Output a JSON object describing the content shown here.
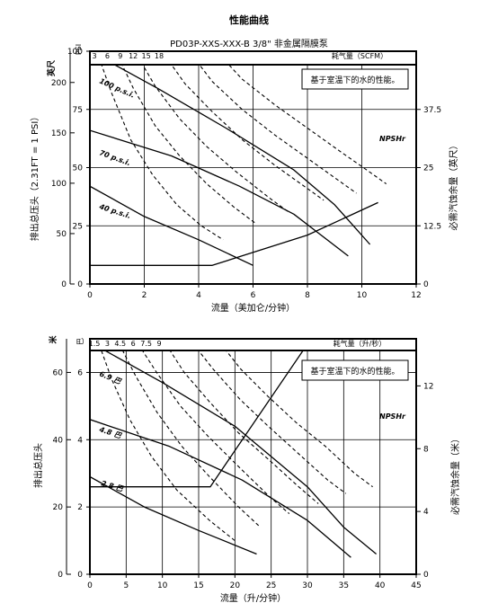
{
  "header": {
    "title": "性能曲线",
    "subtitle": "PD03P-XXS-XXX-B 3/8\" 非金属隔膜泵"
  },
  "chart_data": [
    {
      "type": "line",
      "name": "english",
      "note": "基于室温下的水的性能。",
      "xlabel": "流量（美加仑/分钟）",
      "ylabel_left": "排出总压头（2.31FT = 1 PSI）",
      "left_unit_outer": "英尺",
      "left_unit_inner": "PSI",
      "ylabel_right": "必需汽蚀余量（英尺）",
      "air_label": "耗气量（SCFM）",
      "xlim": [
        0,
        12
      ],
      "ylim_psi": [
        0,
        100
      ],
      "ylim_ft": [
        0,
        231
      ],
      "ylim_right": [
        0,
        50
      ],
      "x_ticks": [
        0,
        2,
        4,
        6,
        8,
        10,
        12
      ],
      "y_ticks_psi": [
        0,
        25,
        50,
        75,
        100
      ],
      "y_ticks_ft": [
        0,
        50,
        100,
        150,
        200
      ],
      "y_ticks_right": [
        0,
        12.5,
        25,
        37.5
      ],
      "air_ticks": [
        3,
        6,
        9,
        12,
        15,
        18
      ],
      "air_curves": [
        {
          "label": "3",
          "points": [
            [
              0.25,
              100
            ],
            [
              0.8,
              82
            ],
            [
              1.5,
              62
            ],
            [
              2.3,
              47
            ],
            [
              3.2,
              34
            ],
            [
              4.1,
              25
            ],
            [
              4.9,
              19
            ]
          ]
        },
        {
          "label": "6",
          "points": [
            [
              0.95,
              100
            ],
            [
              1.6,
              84
            ],
            [
              2.4,
              68
            ],
            [
              3.3,
              55
            ],
            [
              4.3,
              43
            ],
            [
              5.3,
              33
            ],
            [
              6.1,
              26
            ]
          ]
        },
        {
          "label": "9",
          "points": [
            [
              1.65,
              100
            ],
            [
              2.4,
              85
            ],
            [
              3.3,
              71
            ],
            [
              4.3,
              59
            ],
            [
              5.4,
              48
            ],
            [
              6.6,
              37
            ],
            [
              7.3,
              31
            ]
          ]
        },
        {
          "label": "12",
          "points": [
            [
              2.65,
              100
            ],
            [
              3.5,
              86
            ],
            [
              4.5,
              74
            ],
            [
              5.6,
              62
            ],
            [
              6.8,
              51
            ],
            [
              8.0,
              41
            ],
            [
              8.6,
              36
            ]
          ]
        },
        {
          "label": "15",
          "points": [
            [
              3.65,
              100
            ],
            [
              4.5,
              87
            ],
            [
              5.6,
              75
            ],
            [
              6.8,
              64
            ],
            [
              8.0,
              54
            ],
            [
              9.2,
              44
            ],
            [
              9.8,
              39
            ]
          ]
        },
        {
          "label": "18",
          "points": [
            [
              4.65,
              100
            ],
            [
              5.6,
              88
            ],
            [
              6.8,
              77
            ],
            [
              8.0,
              67
            ],
            [
              9.2,
              57
            ],
            [
              10.3,
              48
            ],
            [
              10.9,
              43
            ]
          ]
        }
      ],
      "series": [
        {
          "name": "100 p.s.i.",
          "points": [
            [
              0,
              100
            ],
            [
              2.5,
              84
            ],
            [
              5,
              67
            ],
            [
              7.5,
              49
            ],
            [
              9,
              34
            ],
            [
              10.3,
              17
            ]
          ]
        },
        {
          "name": "70 p.s.i.",
          "points": [
            [
              0,
              66
            ],
            [
              3,
              55
            ],
            [
              5.5,
              42
            ],
            [
              7.5,
              30
            ],
            [
              9.5,
              12
            ]
          ]
        },
        {
          "name": "40 p.s.i.",
          "points": [
            [
              0,
              42
            ],
            [
              2,
              29
            ],
            [
              4,
              19
            ],
            [
              6,
              8
            ]
          ]
        },
        {
          "name": "NPSHr",
          "points": [
            [
              0,
              8
            ],
            [
              4.5,
              8
            ],
            [
              8,
              21
            ],
            [
              10.6,
              35
            ]
          ]
        }
      ]
    },
    {
      "type": "line",
      "name": "metric",
      "note": "基于室温下的水的性能。",
      "xlabel": "流量（升/分钟）",
      "ylabel_left": "排出总压头",
      "left_unit_outer": "米",
      "left_unit_inner": "巴",
      "ylabel_right": "必需汽蚀余量（米）",
      "air_label": "耗气量（升/秒）",
      "xlim": [
        0,
        45
      ],
      "ylim_bar": [
        0,
        7
      ],
      "ylim_m": [
        0,
        70
      ],
      "ylim_right": [
        0,
        15
      ],
      "x_ticks": [
        0,
        5,
        10,
        15,
        20,
        25,
        30,
        35,
        40,
        45
      ],
      "y_ticks_bar": [
        0,
        2,
        4,
        6
      ],
      "y_ticks_m": [
        0,
        20,
        40,
        60
      ],
      "y_ticks_right": [
        0,
        4,
        8,
        12
      ],
      "air_ticks": [
        "1.5",
        "3",
        "4.5",
        "6",
        "7.5",
        "9"
      ],
      "air_curves": [
        {
          "label": "1.5",
          "points": [
            [
              1,
              7
            ],
            [
              3,
              5.8
            ],
            [
              5.5,
              4.6
            ],
            [
              8.5,
              3.5
            ],
            [
              12,
              2.5
            ],
            [
              16.5,
              1.6
            ],
            [
              20,
              1.0
            ]
          ]
        },
        {
          "label": "3",
          "points": [
            [
              3.7,
              7
            ],
            [
              6.3,
              5.9
            ],
            [
              9.3,
              4.8
            ],
            [
              12.7,
              3.8
            ],
            [
              16.5,
              2.9
            ],
            [
              20.5,
              2.0
            ],
            [
              23.5,
              1.4
            ]
          ]
        },
        {
          "label": "4.5",
          "points": [
            [
              6.2,
              7
            ],
            [
              9.2,
              6.0
            ],
            [
              12.5,
              5.0
            ],
            [
              16.3,
              4.1
            ],
            [
              20.5,
              3.2
            ],
            [
              24.8,
              2.3
            ],
            [
              27.5,
              1.8
            ]
          ]
        },
        {
          "label": "6",
          "points": [
            [
              10,
              7
            ],
            [
              13,
              6.0
            ],
            [
              16.6,
              5.1
            ],
            [
              20.5,
              4.2
            ],
            [
              24.7,
              3.4
            ],
            [
              28.8,
              2.6
            ],
            [
              31.5,
              2.1
            ]
          ]
        },
        {
          "label": "7.5",
          "points": [
            [
              13.7,
              7
            ],
            [
              17,
              6.1
            ],
            [
              20.7,
              5.2
            ],
            [
              24.6,
              4.4
            ],
            [
              28.7,
              3.6
            ],
            [
              32.8,
              2.8
            ],
            [
              35.3,
              2.4
            ]
          ]
        },
        {
          "label": "9",
          "points": [
            [
              17.5,
              7
            ],
            [
              20.8,
              6.1
            ],
            [
              24.5,
              5.3
            ],
            [
              28.5,
              4.5
            ],
            [
              32.5,
              3.8
            ],
            [
              36.5,
              3.0
            ],
            [
              39,
              2.6
            ]
          ]
        }
      ],
      "series": [
        {
          "name": "6.9 巴",
          "points": [
            [
              0,
              6.9
            ],
            [
              10,
              5.7
            ],
            [
              20,
              4.4
            ],
            [
              30,
              2.6
            ],
            [
              35,
              1.4
            ],
            [
              39.5,
              0.6
            ]
          ]
        },
        {
          "name": "4.8 巴",
          "points": [
            [
              0,
              4.6
            ],
            [
              11,
              3.8
            ],
            [
              21,
              2.8
            ],
            [
              30,
              1.6
            ],
            [
              36,
              0.5
            ]
          ]
        },
        {
          "name": "2.8 巴",
          "points": [
            [
              0,
              2.9
            ],
            [
              7.5,
              2.0
            ],
            [
              15,
              1.3
            ],
            [
              23,
              0.6
            ]
          ]
        },
        {
          "name": "NPSHr",
          "points": [
            [
              0,
              2.6
            ],
            [
              16.6,
              2.6
            ],
            [
              30.5,
              7.0
            ],
            [
              39.5,
              11.5
            ]
          ]
        }
      ]
    }
  ]
}
